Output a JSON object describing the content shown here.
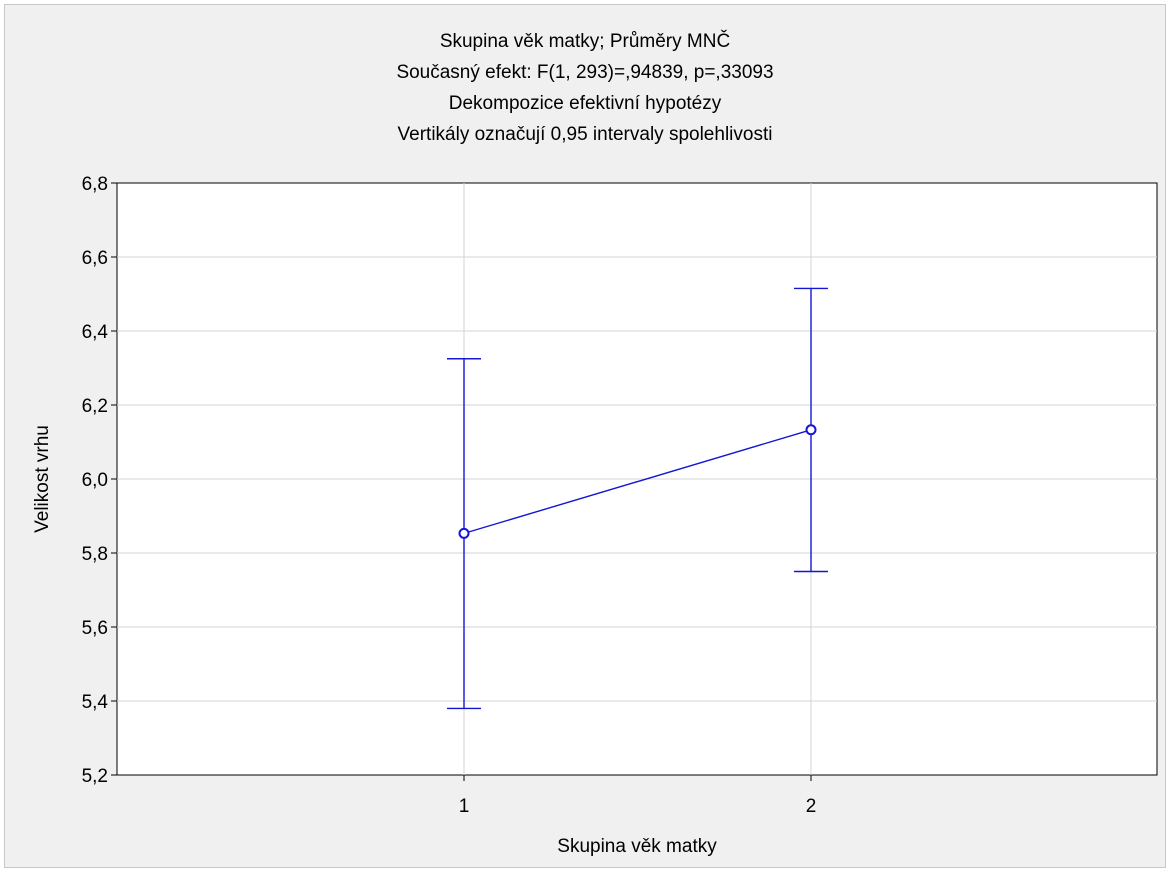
{
  "chart_data": {
    "type": "line",
    "title": "Skupina věk matky; Průměry MNČ",
    "subtitles": [
      "Současný efekt: F(1, 293)=,94839, p=,33093",
      "Dekompozice efektivní hypotézy",
      "Vertikály označují 0,95 intervaly spolehlivosti"
    ],
    "xlabel": "Skupina věk matky",
    "ylabel": "Velikost vrhu",
    "categories": [
      "1",
      "2"
    ],
    "ylim": [
      5.2,
      6.8
    ],
    "yticks": [
      "5,2",
      "5,4",
      "5,6",
      "5,8",
      "6,0",
      "6,2",
      "6,4",
      "6,6",
      "6,8"
    ],
    "grid": true,
    "series": [
      {
        "values": [
          5.853,
          6.133
        ],
        "ci_lower": [
          5.38,
          5.75
        ],
        "ci_upper": [
          6.325,
          6.515
        ]
      }
    ],
    "colors": {
      "series": "#1515d6",
      "grid": "#d4d4d4",
      "background": "#f0f0f0",
      "plot_bg": "#ffffff"
    }
  }
}
